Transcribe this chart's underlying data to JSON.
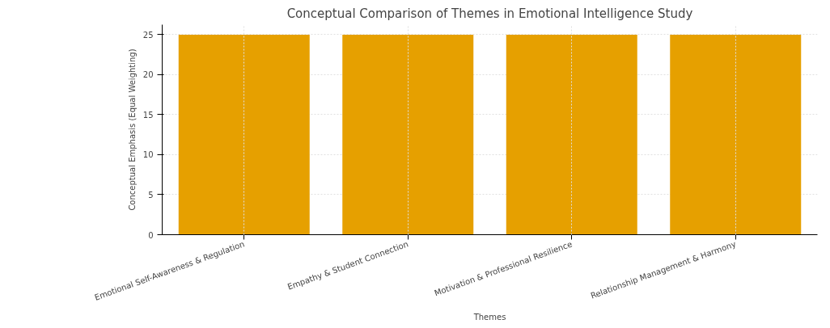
{
  "chart_data": {
    "type": "bar",
    "title": "Conceptual Comparison of Themes in Emotional Intelligence Study",
    "xlabel": "Themes",
    "ylabel": "Conceptual Emphasis (Equal Weighting)",
    "categories": [
      "Emotional Self-Awareness & Regulation",
      "Empathy & Student Connection",
      "Motivation & Professional Resilience",
      "Relationship Management & Harmony"
    ],
    "values": [
      25,
      25,
      25,
      25
    ],
    "color": "#e6a000",
    "ylim": [
      0,
      26.25
    ],
    "yticks": [
      0,
      5,
      10,
      15,
      20,
      25
    ],
    "grid": true
  }
}
